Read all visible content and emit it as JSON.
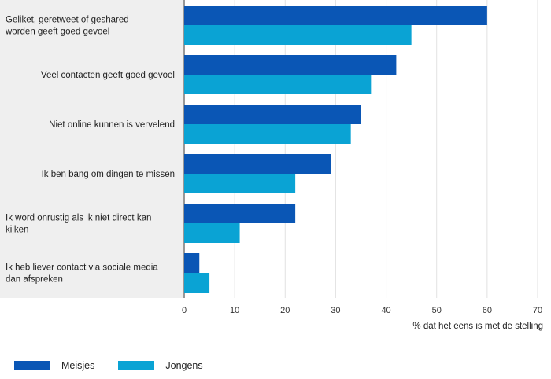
{
  "chart_data": {
    "type": "bar",
    "orientation": "horizontal",
    "categories": [
      [
        "Geliket, geretweet of geshared",
        "worden geeft goed gevoel"
      ],
      [
        "Veel contacten geeft goed gevoel"
      ],
      [
        "Niet online kunnen is vervelend"
      ],
      [
        "Ik ben bang om dingen te missen"
      ],
      [
        "Ik word onrustig als ik niet direct kan",
        "kijken"
      ],
      [
        "Ik heb liever contact via sociale media",
        "dan afspreken"
      ]
    ],
    "series": [
      {
        "name": "Meisjes",
        "color": "#0a56b5",
        "values": [
          60,
          42,
          35,
          29,
          22,
          3
        ]
      },
      {
        "name": "Jongens",
        "color": "#0aa3d4",
        "values": [
          45,
          37,
          33,
          22,
          11,
          5
        ]
      }
    ],
    "xlim": [
      0,
      70
    ],
    "xticks": [
      0,
      10,
      20,
      30,
      40,
      50,
      60,
      70
    ],
    "xlabel": "% dat het eens is met de stelling",
    "grid": true,
    "legend_position": "bottom-left",
    "label_panel_color": "#efefef"
  }
}
